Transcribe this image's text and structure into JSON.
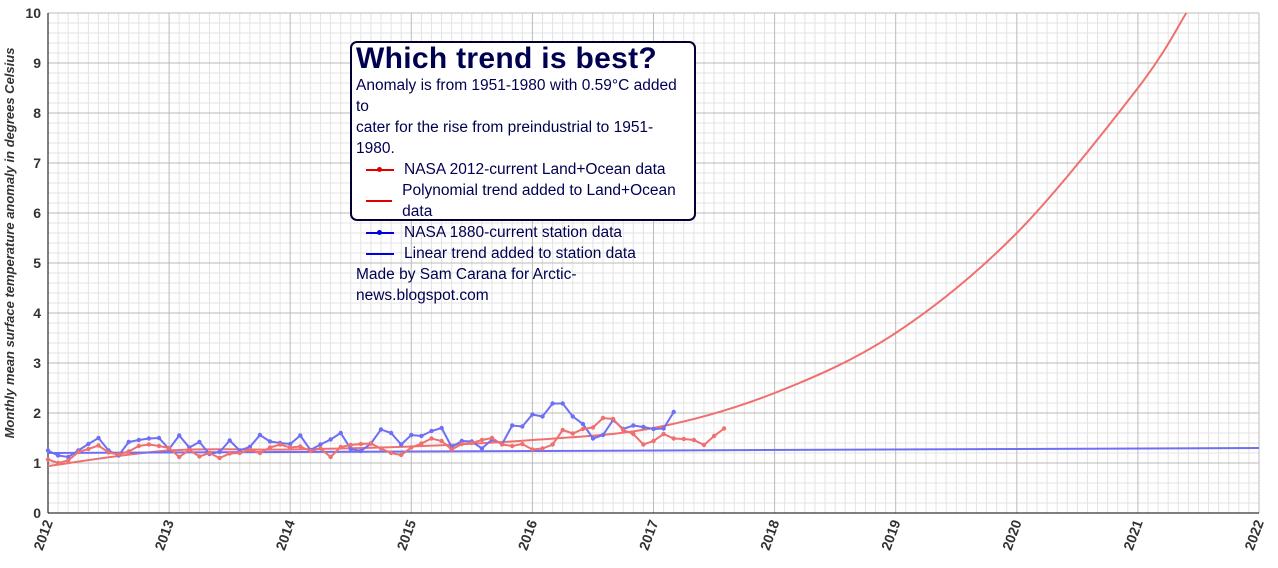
{
  "colors": {
    "nasa_land_ocean": "#f07070",
    "poly_trend": "#f07070",
    "nasa_station": "#6f6ff5",
    "linear_trend": "#6f6ff5",
    "legend_red": "#e00000",
    "legend_blue": "#0000e0",
    "grid_major": "#bbbbbb",
    "grid_minor": "#e3e3e3",
    "axis": "#000000"
  },
  "legend": {
    "title": "Which trend is best?",
    "subtitle_line1": "Anomaly is from 1951-1980 with 0.59°C added to",
    "subtitle_line2": "cater for the rise from preindustrial to 1951-1980.",
    "entries": [
      {
        "label": "NASA 2012-current Land+Ocean data",
        "color": "#e00000",
        "marker": true
      },
      {
        "label": "Polynomial trend added to Land+Ocean data",
        "color": "#e00000",
        "marker": false
      },
      {
        "label": "NASA 1880-current station data",
        "color": "#0000e0",
        "marker": true
      },
      {
        "label": "Linear trend added to station data",
        "color": "#0000e0",
        "marker": false
      }
    ],
    "credit": "Made by Sam Carana for Arctic-news.blogspot.com"
  },
  "chart_data": {
    "type": "line",
    "title": "Which trend is best?",
    "xlabel": "",
    "ylabel": "Monthly mean surface temperature anomaly in degrees Celsius",
    "xlim": [
      2012,
      2022
    ],
    "ylim": [
      0,
      10
    ],
    "x_ticks": [
      "2012",
      "2013",
      "2014",
      "2015",
      "2016",
      "2017",
      "2018",
      "2019",
      "2020",
      "2021",
      "2022"
    ],
    "y_ticks": [
      "0",
      "1",
      "2",
      "3",
      "4",
      "5",
      "6",
      "7",
      "8",
      "9",
      "10"
    ],
    "grid": true,
    "legend_position": "top-left",
    "series": [
      {
        "name": "NASA 2012-current Land+Ocean data",
        "style": "line-markers",
        "start": "2012-01",
        "frequency": "monthly",
        "values": [
          1.07,
          1.0,
          1.05,
          1.22,
          1.28,
          1.35,
          1.21,
          1.17,
          1.23,
          1.34,
          1.37,
          1.34,
          1.3,
          1.12,
          1.26,
          1.13,
          1.2,
          1.1,
          1.19,
          1.2,
          1.26,
          1.2,
          1.31,
          1.37,
          1.31,
          1.33,
          1.24,
          1.29,
          1.12,
          1.32,
          1.36,
          1.38,
          1.39,
          1.29,
          1.2,
          1.16,
          1.31,
          1.39,
          1.49,
          1.44,
          1.27,
          1.38,
          1.4,
          1.46,
          1.5,
          1.37,
          1.34,
          1.38,
          1.27,
          1.29,
          1.37,
          1.66,
          1.59,
          1.68,
          1.71,
          1.9,
          1.88,
          1.66,
          1.58,
          1.37,
          1.44,
          1.58,
          1.49,
          1.48,
          1.46,
          1.36,
          1.54,
          1.69
        ]
      },
      {
        "name": "Polynomial trend added to Land+Ocean data",
        "style": "line",
        "formula": "y = 0.94 + 0.0245*t + 0.0021*t^3.25 (t = years since 2012)",
        "x": [
          2012,
          2013,
          2014,
          2015,
          2016,
          2017,
          2018,
          2019,
          2020,
          2021,
          2021.4
        ],
        "values": [
          0.94,
          1.25,
          1.27,
          1.33,
          1.46,
          1.7,
          2.4,
          3.6,
          5.6,
          8.5,
          10.0
        ]
      },
      {
        "name": "NASA 1880-current station data",
        "style": "line-markers",
        "start": "2012-01",
        "frequency": "monthly",
        "values": [
          1.25,
          1.15,
          1.12,
          1.25,
          1.38,
          1.5,
          1.25,
          1.15,
          1.42,
          1.46,
          1.49,
          1.5,
          1.28,
          1.55,
          1.31,
          1.42,
          1.18,
          1.22,
          1.45,
          1.25,
          1.32,
          1.56,
          1.43,
          1.4,
          1.38,
          1.55,
          1.26,
          1.37,
          1.47,
          1.6,
          1.28,
          1.24,
          1.39,
          1.67,
          1.6,
          1.37,
          1.56,
          1.54,
          1.64,
          1.7,
          1.32,
          1.44,
          1.43,
          1.29,
          1.47,
          1.38,
          1.75,
          1.73,
          1.97,
          1.93,
          2.19,
          2.19,
          1.93,
          1.78,
          1.49,
          1.56,
          1.86,
          1.68,
          1.75,
          1.72,
          1.68,
          1.69,
          2.02
        ]
      },
      {
        "name": "Linear trend added to station data",
        "style": "line",
        "x": [
          2012,
          2022
        ],
        "values": [
          1.2,
          1.3
        ]
      }
    ]
  }
}
